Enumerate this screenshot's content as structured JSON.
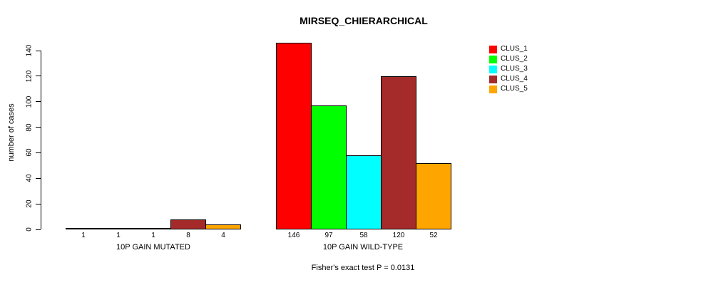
{
  "chart_data": {
    "type": "bar",
    "title": "MIRSEQ_CHIERARCHICAL",
    "ylabel": "number of cases",
    "xlabel": "",
    "ylim": [
      0,
      140
    ],
    "yticks": [
      0,
      20,
      40,
      60,
      80,
      100,
      120,
      140
    ],
    "grid": false,
    "legend_position": "top-right",
    "groups": [
      "10P GAIN MUTATED",
      "10P GAIN WILD-TYPE"
    ],
    "series": [
      {
        "name": "CLUS_1",
        "color": "#FF0000",
        "values": [
          1,
          146
        ]
      },
      {
        "name": "CLUS_2",
        "color": "#00FF00",
        "values": [
          1,
          97
        ]
      },
      {
        "name": "CLUS_3",
        "color": "#00FFFF",
        "values": [
          1,
          58
        ]
      },
      {
        "name": "CLUS_4",
        "color": "#A52A2A",
        "values": [
          8,
          120
        ]
      },
      {
        "name": "CLUS_5",
        "color": "#FFA500",
        "values": [
          4,
          52
        ]
      }
    ],
    "annotation": "Fisher's exact test P = 0.0131"
  }
}
